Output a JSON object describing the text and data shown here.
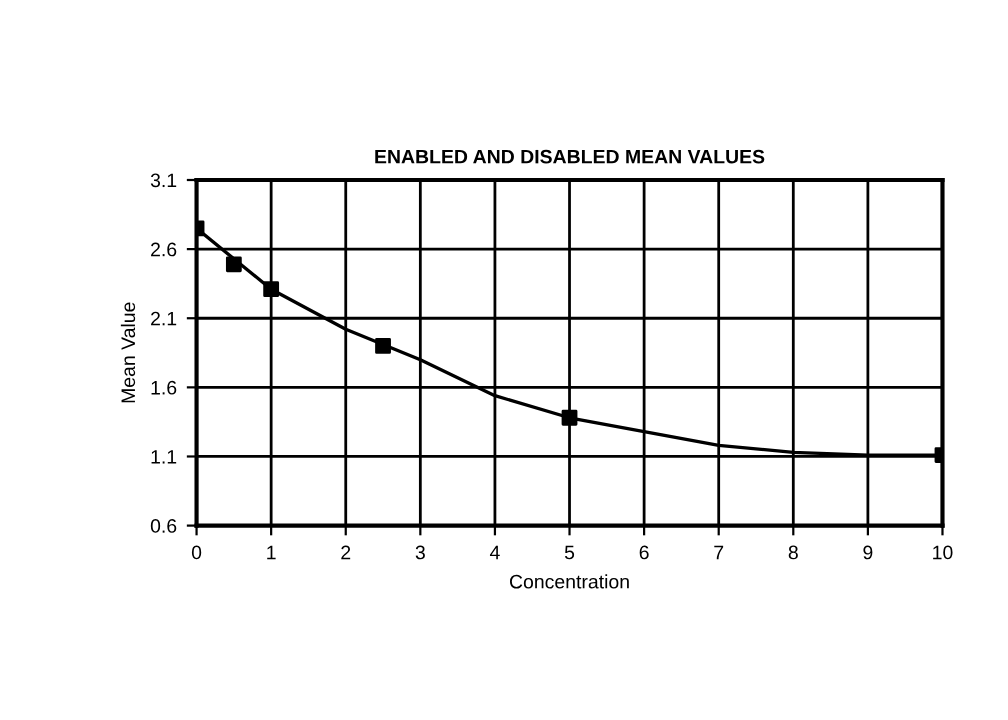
{
  "chart_data": {
    "type": "scatter",
    "title": "ENABLED AND DISABLED MEAN VALUES",
    "xlabel": "Concentration",
    "ylabel": "Mean Value",
    "x": [
      0,
      0.5,
      1,
      2.5,
      5,
      10
    ],
    "series": [
      {
        "color": "#000000",
        "marker": "square",
        "values": [
          2.75,
          2.49,
          2.31,
          1.9,
          1.38,
          1.11
        ]
      },
      {
        "type": "line",
        "color": "#000000",
        "x": [
          0,
          1,
          2,
          3,
          4,
          5,
          6,
          7,
          8,
          9,
          10
        ],
        "values": [
          2.75,
          2.31,
          2.02,
          1.8,
          1.54,
          1.38,
          1.28,
          1.18,
          1.13,
          1.11,
          1.11
        ]
      }
    ],
    "xlim": [
      0,
      10
    ],
    "xticks": [
      0,
      1,
      2,
      3,
      4,
      5,
      6,
      7,
      8,
      9,
      10
    ],
    "ylim": [
      0.6,
      3.1
    ],
    "yticks": [
      0.6,
      1.1,
      1.6,
      2.1,
      2.6,
      3.1
    ],
    "grid": true
  }
}
